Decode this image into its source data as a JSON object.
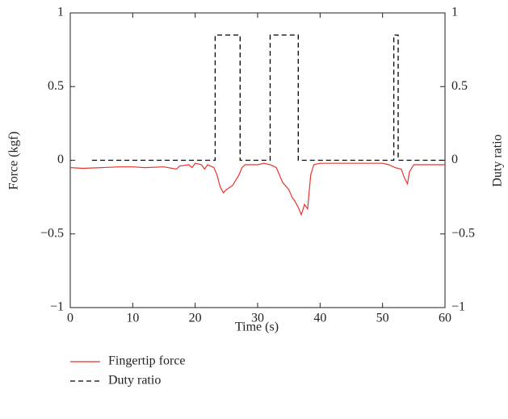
{
  "chart_data": {
    "type": "line",
    "xlabel": "Time (s)",
    "ylabel": "Force (kgf)",
    "y2label": "Duty ratio",
    "xlim": [
      0,
      60
    ],
    "xticks": [
      0,
      10,
      20,
      30,
      40,
      50,
      60
    ],
    "ylim": [
      -1,
      1
    ],
    "yticks": [
      {
        "value": -1,
        "label": "−1"
      },
      {
        "value": -0.5,
        "label": "−0.5"
      },
      0,
      0.5,
      1
    ],
    "y2lim": [
      -1,
      1
    ],
    "y2ticks": [
      {
        "value": -1,
        "label": "−1"
      },
      {
        "value": -0.5,
        "label": "−0.5"
      },
      0,
      0.5,
      1
    ],
    "series": [
      {
        "name": "Fingertip force",
        "color": "#e8342c",
        "dash": false,
        "x": [
          0,
          2,
          5,
          8,
          10,
          12,
          15,
          17,
          17.5,
          19,
          19.5,
          20,
          21,
          21.5,
          22,
          23,
          23.5,
          24,
          24.5,
          25,
          26,
          27,
          27.5,
          28,
          30,
          31,
          32,
          33,
          34,
          35,
          35.5,
          36,
          36.5,
          37,
          37.5,
          38,
          38.5,
          39,
          40,
          45,
          50,
          51,
          52,
          53,
          53.5,
          54,
          54.3,
          55,
          57,
          60
        ],
        "values": [
          -0.05,
          -0.055,
          -0.05,
          -0.045,
          -0.045,
          -0.05,
          -0.045,
          -0.06,
          -0.04,
          -0.03,
          -0.05,
          -0.02,
          -0.03,
          -0.06,
          -0.03,
          -0.05,
          -0.1,
          -0.18,
          -0.22,
          -0.2,
          -0.17,
          -0.1,
          -0.05,
          -0.03,
          -0.03,
          -0.02,
          -0.03,
          -0.05,
          -0.15,
          -0.2,
          -0.25,
          -0.28,
          -0.32,
          -0.37,
          -0.3,
          -0.33,
          -0.1,
          -0.03,
          -0.02,
          -0.02,
          -0.02,
          -0.03,
          -0.05,
          -0.06,
          -0.12,
          -0.16,
          -0.08,
          -0.03,
          -0.03,
          -0.03
        ]
      },
      {
        "name": "Duty ratio",
        "color": "#000000",
        "dash": true,
        "axis": "y2",
        "x": [
          3.5,
          23.2,
          23.2,
          27.2,
          27.2,
          32,
          32,
          36.5,
          36.5,
          51.8,
          51.8,
          52.5,
          52.5,
          60
        ],
        "values": [
          0,
          0,
          0.85,
          0.85,
          0,
          0,
          0.85,
          0.85,
          0,
          0,
          0.85,
          0.85,
          0,
          0
        ]
      }
    ]
  }
}
